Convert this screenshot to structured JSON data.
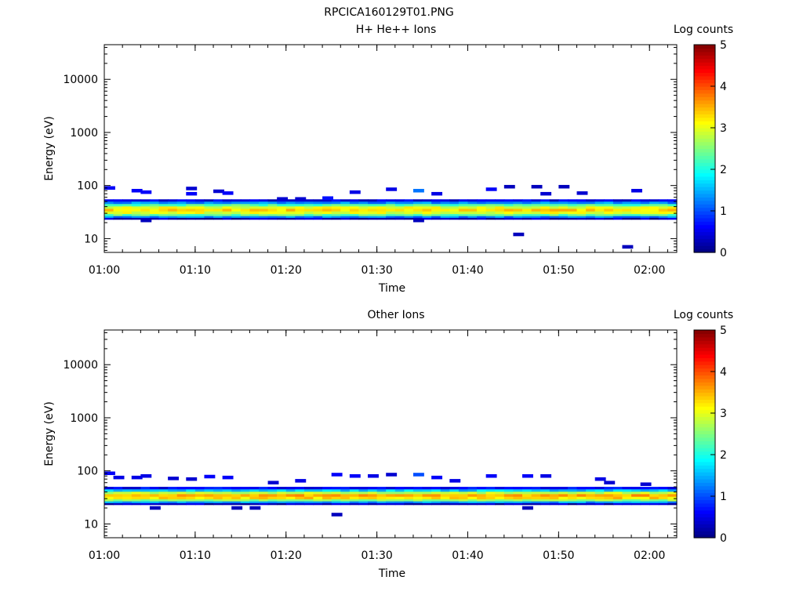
{
  "figure_title": "RPCICA160129T01.PNG",
  "panels": [
    {
      "title": "H+ He++ Ions",
      "ylabel": "Energy (eV)",
      "xlabel": "Time",
      "colorbar_label": "Log counts",
      "x_tick_labels": [
        "01:00",
        "01:10",
        "01:20",
        "01:30",
        "01:40",
        "01:50",
        "02:00"
      ],
      "y_tick_labels": [
        "10",
        "100",
        "1000",
        "10000"
      ],
      "colorbar_tick_labels": [
        "0",
        "1",
        "2",
        "3",
        "4",
        "5"
      ]
    },
    {
      "title": "Other Ions",
      "ylabel": "Energy (eV)",
      "xlabel": "Time",
      "colorbar_label": "Log counts",
      "x_tick_labels": [
        "01:00",
        "01:10",
        "01:20",
        "01:30",
        "01:40",
        "01:50",
        "02:00"
      ],
      "y_tick_labels": [
        "10",
        "100",
        "1000",
        "10000"
      ],
      "colorbar_tick_labels": [
        "0",
        "1",
        "2",
        "3",
        "4",
        "5"
      ]
    }
  ],
  "chart_data": [
    {
      "type": "heatmap",
      "title": "H+ He++ Ions",
      "xlabel": "Time",
      "ylabel": "Energy (eV)",
      "x_range": [
        "01:00",
        "02:03"
      ],
      "y_range": [
        5.5,
        45000
      ],
      "y_scale": "log",
      "colorbar": {
        "label": "Log counts",
        "range": [
          0,
          5
        ],
        "colormap": "jet"
      },
      "band": {
        "description_min_eV": 23,
        "description_max_eV": 55,
        "bins_eV": [
          24,
          26,
          28,
          31,
          35,
          39,
          43,
          48,
          53
        ],
        "profile": [
          0.3,
          1.3,
          2.4,
          3.0,
          3.3,
          3.0,
          2.3,
          1.3,
          0.5
        ]
      },
      "sparse_points": [
        {
          "time": "01:00",
          "energy": 90,
          "value": 0.6
        },
        {
          "time": "01:03",
          "energy": 80,
          "value": 0.6
        },
        {
          "time": "01:04",
          "energy": 75,
          "value": 0.6
        },
        {
          "time": "01:04",
          "energy": 22,
          "value": 0.3
        },
        {
          "time": "01:09",
          "energy": 88,
          "value": 0.4
        },
        {
          "time": "01:09",
          "energy": 70,
          "value": 0.6
        },
        {
          "time": "01:12",
          "energy": 78,
          "value": 0.4
        },
        {
          "time": "01:13",
          "energy": 72,
          "value": 0.6
        },
        {
          "time": "01:19",
          "energy": 56,
          "value": 0.4
        },
        {
          "time": "01:21",
          "energy": 56,
          "value": 0.4
        },
        {
          "time": "01:24",
          "energy": 58,
          "value": 0.7
        },
        {
          "time": "01:27",
          "energy": 75,
          "value": 0.5
        },
        {
          "time": "01:31",
          "energy": 85,
          "value": 0.5
        },
        {
          "time": "01:34",
          "energy": 80,
          "value": 1.2
        },
        {
          "time": "01:34",
          "energy": 22,
          "value": 0.3
        },
        {
          "time": "01:36",
          "energy": 70,
          "value": 0.5
        },
        {
          "time": "01:42",
          "energy": 85,
          "value": 0.6
        },
        {
          "time": "01:44",
          "energy": 95,
          "value": 0.3
        },
        {
          "time": "01:45",
          "energy": 12,
          "value": 0.3
        },
        {
          "time": "01:47",
          "energy": 95,
          "value": 0.3
        },
        {
          "time": "01:48",
          "energy": 70,
          "value": 0.4
        },
        {
          "time": "01:50",
          "energy": 95,
          "value": 0.3
        },
        {
          "time": "01:52",
          "energy": 72,
          "value": 0.4
        },
        {
          "time": "01:57",
          "energy": 7,
          "value": 0.3
        },
        {
          "time": "01:58",
          "energy": 80,
          "value": 0.5
        }
      ]
    },
    {
      "type": "heatmap",
      "title": "Other Ions",
      "xlabel": "Time",
      "ylabel": "Energy (eV)",
      "x_range": [
        "01:00",
        "02:03"
      ],
      "y_range": [
        5.5,
        45000
      ],
      "y_scale": "log",
      "colorbar": {
        "label": "Log counts",
        "range": [
          0,
          5
        ],
        "colormap": "jet"
      },
      "band": {
        "description_min_eV": 23,
        "description_max_eV": 50,
        "bins_eV": [
          24,
          26,
          28,
          31,
          35,
          39,
          43,
          48
        ],
        "profile": [
          0.3,
          1.4,
          2.6,
          3.3,
          3.5,
          2.8,
          1.6,
          0.6
        ]
      },
      "sparse_points": [
        {
          "time": "01:00",
          "energy": 90,
          "value": 0.6
        },
        {
          "time": "01:01",
          "energy": 75,
          "value": 0.5
        },
        {
          "time": "01:03",
          "energy": 75,
          "value": 0.5
        },
        {
          "time": "01:04",
          "energy": 80,
          "value": 0.5
        },
        {
          "time": "01:05",
          "energy": 20,
          "value": 0.3
        },
        {
          "time": "01:07",
          "energy": 72,
          "value": 0.4
        },
        {
          "time": "01:09",
          "energy": 70,
          "value": 0.4
        },
        {
          "time": "01:11",
          "energy": 78,
          "value": 0.6
        },
        {
          "time": "01:13",
          "energy": 75,
          "value": 0.6
        },
        {
          "time": "01:14",
          "energy": 20,
          "value": 0.3
        },
        {
          "time": "01:16",
          "energy": 20,
          "value": 0.3
        },
        {
          "time": "01:18",
          "energy": 60,
          "value": 0.4
        },
        {
          "time": "01:21",
          "energy": 65,
          "value": 0.5
        },
        {
          "time": "01:25",
          "energy": 85,
          "value": 0.6
        },
        {
          "time": "01:25",
          "energy": 15,
          "value": 0.3
        },
        {
          "time": "01:27",
          "energy": 80,
          "value": 0.6
        },
        {
          "time": "01:29",
          "energy": 80,
          "value": 0.5
        },
        {
          "time": "01:31",
          "energy": 85,
          "value": 0.4
        },
        {
          "time": "01:34",
          "energy": 85,
          "value": 1.0
        },
        {
          "time": "01:36",
          "energy": 75,
          "value": 0.6
        },
        {
          "time": "01:38",
          "energy": 65,
          "value": 0.5
        },
        {
          "time": "01:42",
          "energy": 80,
          "value": 0.6
        },
        {
          "time": "01:46",
          "energy": 80,
          "value": 0.6
        },
        {
          "time": "01:46",
          "energy": 20,
          "value": 0.3
        },
        {
          "time": "01:48",
          "energy": 80,
          "value": 0.5
        },
        {
          "time": "01:54",
          "energy": 70,
          "value": 0.5
        },
        {
          "time": "01:55",
          "energy": 60,
          "value": 0.4
        },
        {
          "time": "01:59",
          "energy": 56,
          "value": 0.4
        }
      ]
    }
  ]
}
